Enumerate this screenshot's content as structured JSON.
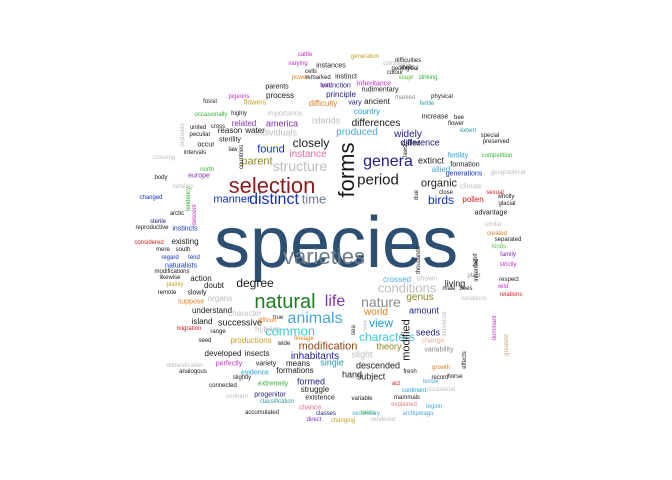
{
  "palette": {
    "navy": "#2c4f72",
    "maroon": "#8b1a1a",
    "dark": "#1a1a1a",
    "darkgreen": "#1a8020",
    "slate": "#6e7d8c",
    "gray": "#8a8a8a",
    "lightgray": "#bdbdbd",
    "silver": "#c9c9c9",
    "cyan": "#1fa0d8",
    "skyblue": "#4aa8d8",
    "blue": "#1030c0",
    "darkblue": "#20208a",
    "teal": "#2a9aa0",
    "aqua": "#40c8d0",
    "brown": "#8b4513",
    "orange": "#e08020",
    "red": "#d02020",
    "pink": "#e06aa0",
    "salmon": "#e08080",
    "green": "#30b030",
    "lime": "#60c040",
    "olive": "#8a8a20",
    "gold": "#c8a020",
    "yellow": "#d8d040",
    "purple": "#8030b0",
    "magenta": "#c030c0",
    "lavender": "#b0a0d8",
    "tan": "#c8a880",
    "peach": "#f0b090",
    "black": "#000000"
  },
  "words": [
    {
      "text": "species",
      "fs": 72,
      "c": "navy"
    },
    {
      "text": "selection",
      "fs": 22,
      "c": "maroon"
    },
    {
      "text": "varieties",
      "fs": 22,
      "c": "slate"
    },
    {
      "text": "forms",
      "fs": 22,
      "c": "dark",
      "rot": true
    },
    {
      "text": "natural",
      "fs": 20,
      "c": "darkgreen"
    },
    {
      "text": "distinct",
      "fs": 16,
      "c": "blue"
    },
    {
      "text": "genera",
      "fs": 16,
      "c": "darkblue"
    },
    {
      "text": "period",
      "fs": 15,
      "c": "dark"
    },
    {
      "text": "animals",
      "fs": 16,
      "c": "skyblue"
    },
    {
      "text": "life",
      "fs": 16,
      "c": "purple"
    },
    {
      "text": "nature",
      "fs": 14,
      "c": "gray"
    },
    {
      "text": "conditions",
      "fs": 13,
      "c": "lightgray"
    },
    {
      "text": "structure",
      "fs": 14,
      "c": "lightgray"
    },
    {
      "text": "time",
      "fs": 13,
      "c": "slate"
    },
    {
      "text": "organic",
      "fs": 11,
      "c": "dark"
    },
    {
      "text": "birds",
      "fs": 12,
      "c": "blue"
    },
    {
      "text": "common",
      "fs": 13,
      "c": "aqua"
    },
    {
      "text": "characters",
      "fs": 12,
      "c": "aqua"
    },
    {
      "text": "view",
      "fs": 12,
      "c": "cyan"
    },
    {
      "text": "degree",
      "fs": 12,
      "c": "dark"
    },
    {
      "text": "closely",
      "fs": 12,
      "c": "dark"
    },
    {
      "text": "parent",
      "fs": 11,
      "c": "olive"
    },
    {
      "text": "found",
      "fs": 11,
      "c": "blue"
    },
    {
      "text": "manner",
      "fs": 11,
      "c": "blue"
    },
    {
      "text": "modification",
      "fs": 11,
      "c": "brown"
    },
    {
      "text": "inhabitants",
      "fs": 10,
      "c": "darkblue"
    },
    {
      "text": "modified",
      "fs": 11,
      "c": "dark",
      "rot": true
    },
    {
      "text": "genus",
      "fs": 10,
      "c": "olive"
    },
    {
      "text": "world",
      "fs": 10,
      "c": "orange"
    },
    {
      "text": "instance",
      "fs": 10,
      "c": "pink"
    },
    {
      "text": "produced",
      "fs": 10,
      "c": "skyblue"
    },
    {
      "text": "differences",
      "fs": 10,
      "c": "dark"
    },
    {
      "text": "widely",
      "fs": 10,
      "c": "darkblue"
    },
    {
      "text": "difference",
      "fs": 9,
      "c": "darkblue"
    },
    {
      "text": "extinct",
      "fs": 9,
      "c": "dark"
    },
    {
      "text": "theory",
      "fs": 9,
      "c": "olive"
    },
    {
      "text": "amount",
      "fs": 9,
      "c": "darkblue"
    },
    {
      "text": "seeds",
      "fs": 9,
      "c": "darkblue"
    },
    {
      "text": "living",
      "fs": 9,
      "c": "dark"
    },
    {
      "text": "descended",
      "fs": 9,
      "c": "dark"
    },
    {
      "text": "successive",
      "fs": 9,
      "c": "dark"
    },
    {
      "text": "formed",
      "fs": 9,
      "c": "darkblue"
    },
    {
      "text": "single",
      "fs": 9,
      "c": "teal"
    },
    {
      "text": "hand",
      "fs": 9,
      "c": "dark"
    },
    {
      "text": "subject",
      "fs": 9,
      "c": "dark"
    },
    {
      "text": "slight",
      "fs": 9,
      "c": "lightgray"
    },
    {
      "text": "america",
      "fs": 9,
      "c": "purple"
    },
    {
      "text": "islands",
      "fs": 9,
      "c": "lightgray"
    },
    {
      "text": "individuals",
      "fs": 9,
      "c": "lightgray"
    },
    {
      "text": "country",
      "fs": 8,
      "c": "cyan"
    },
    {
      "text": "existing",
      "fs": 8,
      "c": "dark"
    },
    {
      "text": "struggle",
      "fs": 8,
      "c": "dark"
    },
    {
      "text": "formations",
      "fs": 8,
      "c": "dark"
    },
    {
      "text": "action",
      "fs": 8,
      "c": "dark"
    },
    {
      "text": "doubt",
      "fs": 8,
      "c": "dark"
    },
    {
      "text": "understand",
      "fs": 8,
      "c": "dark"
    },
    {
      "text": "island",
      "fs": 8,
      "c": "dark"
    },
    {
      "text": "developed",
      "fs": 8,
      "c": "dark"
    },
    {
      "text": "insects",
      "fs": 8,
      "c": "dark"
    },
    {
      "text": "means",
      "fs": 8,
      "c": "dark"
    },
    {
      "text": "productions",
      "fs": 8,
      "c": "gold"
    },
    {
      "text": "organs",
      "fs": 8,
      "c": "lightgray"
    },
    {
      "text": "character",
      "fs": 8,
      "c": "lightgray"
    },
    {
      "text": "hybrids",
      "fs": 8,
      "c": "lightgray"
    },
    {
      "text": "ancient",
      "fs": 8,
      "c": "dark"
    },
    {
      "text": "vary",
      "fs": 7,
      "c": "darkblue"
    },
    {
      "text": "principle",
      "fs": 8,
      "c": "darkblue"
    },
    {
      "text": "difficulty",
      "fs": 8,
      "c": "orange"
    },
    {
      "text": "process",
      "fs": 8,
      "c": "dark"
    },
    {
      "text": "water",
      "fs": 8,
      "c": "dark"
    },
    {
      "text": "reason",
      "fs": 8,
      "c": "dark"
    },
    {
      "text": "related",
      "fs": 8,
      "c": "purple"
    },
    {
      "text": "flowers",
      "fs": 7,
      "c": "gold"
    },
    {
      "text": "sterility",
      "fs": 7,
      "c": "dark"
    },
    {
      "text": "fertility",
      "fs": 7,
      "c": "cyan"
    },
    {
      "text": "formation",
      "fs": 7,
      "c": "dark"
    },
    {
      "text": "pollen",
      "fs": 8,
      "c": "red"
    },
    {
      "text": "advantage",
      "fs": 7,
      "c": "dark"
    },
    {
      "text": "climate",
      "fs": 7,
      "c": "lightgray"
    },
    {
      "text": "generations",
      "fs": 7,
      "c": "blue"
    },
    {
      "text": "allied",
      "fs": 8,
      "c": "skyblue"
    },
    {
      "text": "called",
      "fs": 7,
      "c": "dark"
    },
    {
      "text": "increase",
      "fs": 7,
      "c": "dark"
    },
    {
      "text": "crossed",
      "fs": 8,
      "c": "skyblue"
    },
    {
      "text": "shown",
      "fs": 7,
      "c": "lightgray"
    },
    {
      "text": "change",
      "fs": 7,
      "c": "peach"
    },
    {
      "text": "variability",
      "fs": 7,
      "c": "gray"
    },
    {
      "text": "inheritance",
      "fs": 7,
      "c": "magenta"
    },
    {
      "text": "rudimentary",
      "fs": 7,
      "c": "dark"
    },
    {
      "text": "extinction",
      "fs": 7,
      "c": "darkblue"
    },
    {
      "text": "instinct",
      "fs": 7,
      "c": "dark"
    },
    {
      "text": "instances",
      "fs": 7,
      "c": "dark"
    },
    {
      "text": "parents",
      "fs": 7,
      "c": "dark"
    },
    {
      "text": "variety",
      "fs": 7,
      "c": "dark"
    },
    {
      "text": "perfectly",
      "fs": 7,
      "c": "magenta"
    },
    {
      "text": "evidence",
      "fs": 7,
      "c": "cyan"
    },
    {
      "text": "extremely",
      "fs": 7,
      "c": "green"
    },
    {
      "text": "progenitor",
      "fs": 7,
      "c": "darkblue"
    },
    {
      "text": "existence",
      "fs": 7,
      "c": "dark"
    },
    {
      "text": "classification",
      "fs": 6,
      "c": "teal"
    },
    {
      "text": "chance",
      "fs": 7,
      "c": "pink"
    },
    {
      "text": "accumulated",
      "fs": 6,
      "c": "dark"
    },
    {
      "text": "direct",
      "fs": 6,
      "c": "purple"
    },
    {
      "text": "classes",
      "fs": 6,
      "c": "darkblue"
    },
    {
      "text": "races",
      "fs": 6,
      "c": "lime"
    },
    {
      "text": "secondary",
      "fs": 6,
      "c": "skyblue"
    },
    {
      "text": "archipelago",
      "fs": 6,
      "c": "skyblue"
    },
    {
      "text": "changing",
      "fs": 6,
      "c": "gold"
    },
    {
      "text": "rendered",
      "fs": 6,
      "c": "lightgray"
    },
    {
      "text": "region",
      "fs": 6,
      "c": "skyblue"
    },
    {
      "text": "explained",
      "fs": 6,
      "c": "salmon"
    },
    {
      "text": "mammals",
      "fs": 6,
      "c": "dark"
    },
    {
      "text": "continent",
      "fs": 6,
      "c": "cyan"
    },
    {
      "text": "variable",
      "fs": 6,
      "c": "dark"
    },
    {
      "text": "horse",
      "fs": 6,
      "c": "dark"
    },
    {
      "text": "growth",
      "fs": 6,
      "c": "orange"
    },
    {
      "text": "record",
      "fs": 6,
      "c": "dark"
    },
    {
      "text": "male",
      "fs": 6,
      "c": "dark"
    },
    {
      "text": "bees",
      "fs": 6,
      "c": "dark"
    },
    {
      "text": "plant",
      "fs": 6,
      "c": "gray"
    },
    {
      "text": "variations",
      "fs": 6,
      "c": "lightgray"
    },
    {
      "text": "effects",
      "fs": 6,
      "c": "dark",
      "rot": true
    },
    {
      "text": "habit",
      "fs": 6,
      "c": "dark",
      "rot": true
    },
    {
      "text": "individual",
      "fs": 6,
      "c": "lightgray",
      "rot": true
    },
    {
      "text": "inherited",
      "fs": 6,
      "c": "dark",
      "rot": true
    },
    {
      "text": "dominant",
      "fs": 6,
      "c": "magenta",
      "rot": true
    },
    {
      "text": "greatest",
      "fs": 6,
      "c": "tan",
      "rot": true
    },
    {
      "text": "relations",
      "fs": 6,
      "c": "red"
    },
    {
      "text": "wild",
      "fs": 6,
      "c": "magenta"
    },
    {
      "text": "strictly",
      "fs": 6,
      "c": "magenta"
    },
    {
      "text": "family",
      "fs": 6,
      "c": "purple"
    },
    {
      "text": "respect",
      "fs": 6,
      "c": "dark"
    },
    {
      "text": "kinds",
      "fs": 6,
      "c": "lime"
    },
    {
      "text": "separated",
      "fs": 6,
      "c": "dark"
    },
    {
      "text": "created",
      "fs": 6,
      "c": "orange"
    },
    {
      "text": "similar",
      "fs": 6,
      "c": "lightgray"
    },
    {
      "text": "glacial",
      "fs": 6,
      "c": "dark"
    },
    {
      "text": "wholly",
      "fs": 6,
      "c": "dark"
    },
    {
      "text": "sexual",
      "fs": 6,
      "c": "red"
    },
    {
      "text": "close",
      "fs": 6,
      "c": "dark"
    },
    {
      "text": "slowly",
      "fs": 7,
      "c": "dark"
    },
    {
      "text": "remote",
      "fs": 6,
      "c": "dark"
    },
    {
      "text": "existing2",
      "fs": 6,
      "c": "dark",
      "hidden": true
    },
    {
      "text": "geographical",
      "fs": 6,
      "c": "lightgray"
    },
    {
      "text": "competition",
      "fs": 6,
      "c": "green"
    },
    {
      "text": "special",
      "fs": 6,
      "c": "dark"
    },
    {
      "text": "preserved",
      "fs": 6,
      "c": "dark"
    },
    {
      "text": "extent",
      "fs": 6,
      "c": "teal"
    },
    {
      "text": "bee",
      "fs": 6,
      "c": "dark"
    },
    {
      "text": "flower",
      "fs": 6,
      "c": "dark"
    },
    {
      "text": "fertile",
      "fs": 6,
      "c": "teal"
    },
    {
      "text": "physical",
      "fs": 6,
      "c": "dark"
    },
    {
      "text": "marked",
      "fs": 6,
      "c": "gray"
    },
    {
      "text": "stage",
      "fs": 6,
      "c": "lime"
    },
    {
      "text": "striking",
      "fs": 6,
      "c": "green"
    },
    {
      "text": "colour",
      "fs": 6,
      "c": "dark"
    },
    {
      "text": "shells",
      "fs": 6,
      "c": "dark"
    },
    {
      "text": "difficulties",
      "fs": 6,
      "c": "dark"
    },
    {
      "text": "geological",
      "fs": 6,
      "c": "dark"
    },
    {
      "text": "generation",
      "fs": 6,
      "c": "gold"
    },
    {
      "text": "compared",
      "fs": 6,
      "c": "lightgray"
    },
    {
      "text": "cattle",
      "fs": 6,
      "c": "magenta"
    },
    {
      "text": "varying",
      "fs": 6,
      "c": "magenta"
    },
    {
      "text": "cells",
      "fs": 6,
      "c": "dark"
    },
    {
      "text": "power",
      "fs": 6,
      "c": "orange"
    },
    {
      "text": "remarked",
      "fs": 6,
      "c": "dark"
    },
    {
      "text": "food",
      "fs": 6,
      "c": "purple"
    },
    {
      "text": "importance",
      "fs": 7,
      "c": "lightgray"
    },
    {
      "text": "highly",
      "fs": 6,
      "c": "dark"
    },
    {
      "text": "cross",
      "fs": 6,
      "c": "dark"
    },
    {
      "text": "occasionally",
      "fs": 6,
      "c": "green"
    },
    {
      "text": "pigeons",
      "fs": 6,
      "c": "magenta"
    },
    {
      "text": "fossil",
      "fs": 6,
      "c": "dark"
    },
    {
      "text": "occur",
      "fs": 7,
      "c": "dark"
    },
    {
      "text": "intervals",
      "fs": 6,
      "c": "dark"
    },
    {
      "text": "europe",
      "fs": 7,
      "c": "purple"
    },
    {
      "text": "north",
      "fs": 6,
      "c": "green"
    },
    {
      "text": "tendency",
      "fs": 6,
      "c": "green",
      "rot": true
    },
    {
      "text": "descent",
      "fs": 6,
      "c": "magenta",
      "rot": true
    },
    {
      "text": "body",
      "fs": 6,
      "c": "dark"
    },
    {
      "text": "changed",
      "fs": 6,
      "c": "blue"
    },
    {
      "text": "sterile",
      "fs": 6,
      "c": "darkblue"
    },
    {
      "text": "instincts",
      "fs": 7,
      "c": "blue"
    },
    {
      "text": "naturalists",
      "fs": 7,
      "c": "blue"
    },
    {
      "text": "regard",
      "fs": 6,
      "c": "blue"
    },
    {
      "text": "tend",
      "fs": 6,
      "c": "blue"
    },
    {
      "text": "south",
      "fs": 6,
      "c": "dark"
    },
    {
      "text": "mere",
      "fs": 6,
      "c": "dark"
    },
    {
      "text": "modifications",
      "fs": 6,
      "c": "dark"
    },
    {
      "text": "likewise",
      "fs": 6,
      "c": "dark"
    },
    {
      "text": "plainly",
      "fs": 6,
      "c": "gold"
    },
    {
      "text": "suppose",
      "fs": 7,
      "c": "orange"
    },
    {
      "text": "migration",
      "fs": 6,
      "c": "red"
    },
    {
      "text": "range",
      "fs": 6,
      "c": "dark"
    },
    {
      "text": "seed",
      "fs": 6,
      "c": "dark"
    },
    {
      "text": "analogous",
      "fs": 6,
      "c": "dark"
    },
    {
      "text": "slightly",
      "fs": 6,
      "c": "dark"
    },
    {
      "text": "connected",
      "fs": 6,
      "c": "dark"
    },
    {
      "text": "northern",
      "fs": 6,
      "c": "lightgray"
    },
    {
      "text": "domestication",
      "fs": 6,
      "c": "lightgray"
    },
    {
      "text": "considered",
      "fs": 6,
      "c": "red"
    },
    {
      "text": "reproductive",
      "fs": 6,
      "c": "dark"
    },
    {
      "text": "arctic",
      "fs": 6,
      "c": "dark"
    },
    {
      "text": "law",
      "fs": 6,
      "c": "dark"
    },
    {
      "text": "united",
      "fs": 6,
      "c": "dark"
    },
    {
      "text": "peculiar",
      "fs": 6,
      "c": "dark"
    },
    {
      "text": "countries",
      "fs": 6,
      "c": "dark",
      "rot": true
    },
    {
      "text": "probable",
      "fs": 6,
      "c": "lightgray",
      "rot": true
    },
    {
      "text": "families",
      "fs": 6,
      "c": "lightgray"
    },
    {
      "text": "crossing",
      "fs": 6,
      "c": "lightgray"
    },
    {
      "text": "true",
      "fs": 6,
      "c": "dark"
    },
    {
      "text": "wide",
      "fs": 6,
      "c": "dark"
    },
    {
      "text": "difficult",
      "fs": 6,
      "c": "orange"
    },
    {
      "text": "lineage",
      "fs": 6,
      "c": "orange"
    },
    {
      "text": "act",
      "fs": 6,
      "c": "red"
    },
    {
      "text": "fresh",
      "fs": 6,
      "c": "dark"
    },
    {
      "text": "lesser",
      "fs": 6,
      "c": "skyblue"
    },
    {
      "text": "occasional",
      "fs": 6,
      "c": "lightgray"
    },
    {
      "text": "thousands",
      "fs": 6,
      "c": "dark",
      "rot": true
    },
    {
      "text": "due",
      "fs": 6,
      "c": "dark",
      "rot": true
    },
    {
      "text": "laws",
      "fs": 6,
      "c": "dark",
      "rot": true
    },
    {
      "text": "tree",
      "fs": 6,
      "c": "lightgray",
      "rot": true
    },
    {
      "text": "sea",
      "fs": 6,
      "c": "dark",
      "rot": true
    }
  ]
}
